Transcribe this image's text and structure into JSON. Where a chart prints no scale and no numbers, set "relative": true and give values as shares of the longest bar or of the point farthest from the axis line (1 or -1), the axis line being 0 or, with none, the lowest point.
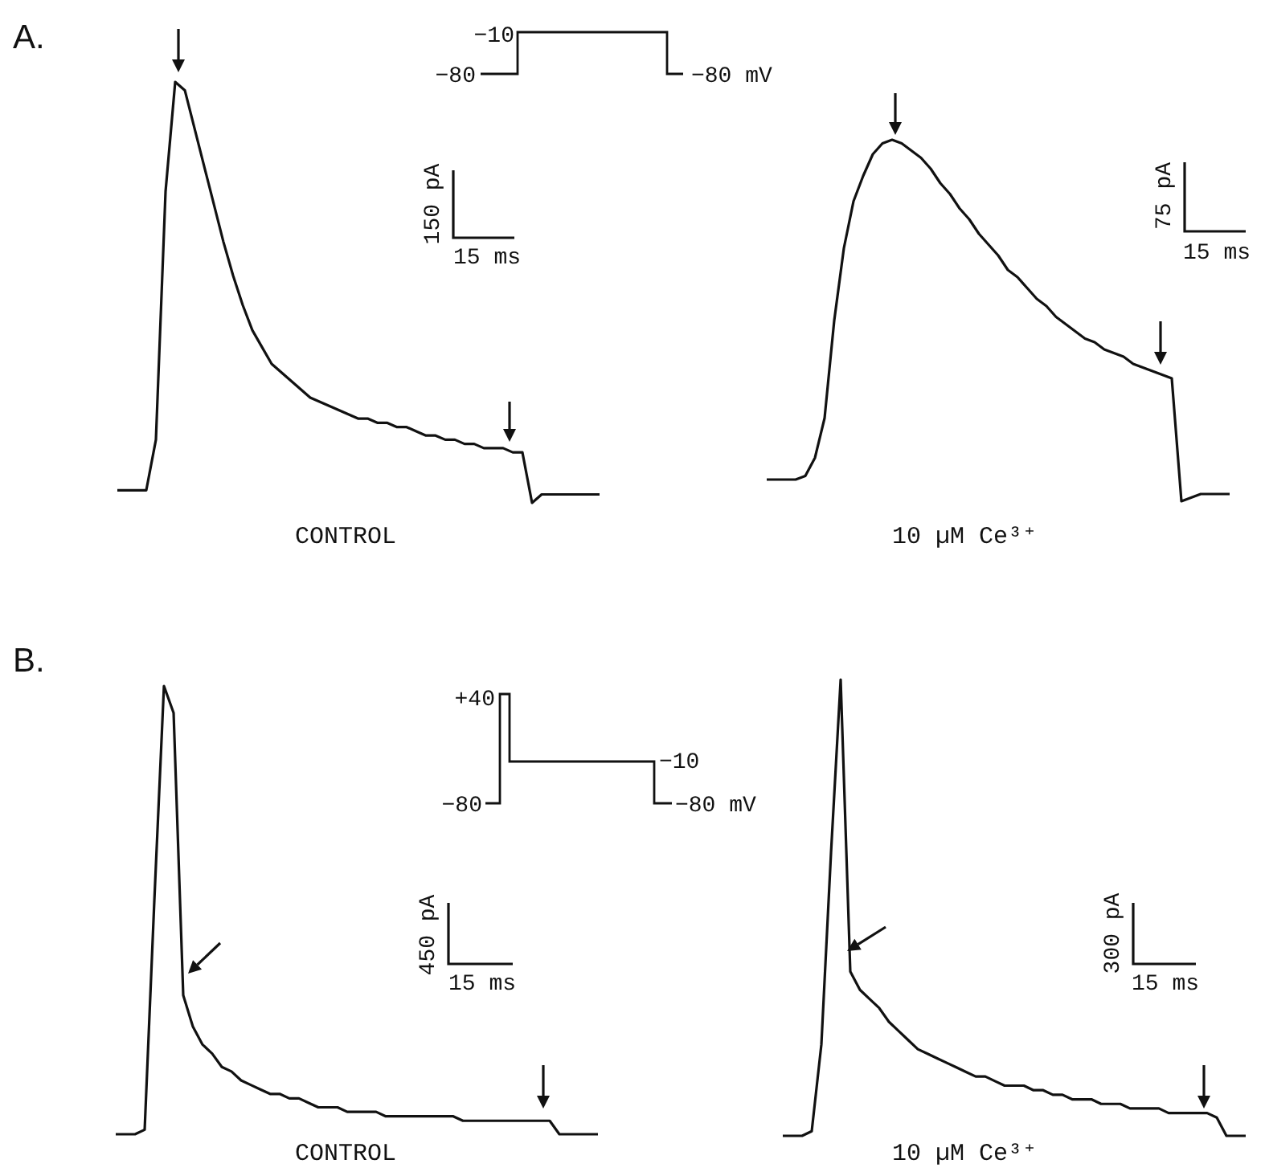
{
  "chart_data": [
    {
      "type": "line",
      "title": "A.",
      "xlabel": "CONTROL",
      "relative": true,
      "color": "#111111",
      "annotations": [
        "−10",
        "−80",
        "−80 mV",
        "150 pA",
        "15 ms"
      ],
      "categories": [
        null,
        null,
        null,
        null,
        null,
        null,
        null,
        null,
        null,
        null,
        null,
        null,
        null,
        null,
        null,
        null,
        null,
        null,
        null,
        null,
        null,
        null,
        null,
        null,
        null,
        null,
        null,
        null,
        null,
        null,
        null,
        null,
        null,
        null,
        null,
        null,
        null,
        null,
        null,
        null,
        null,
        null,
        null,
        null,
        null,
        null,
        null,
        null,
        null,
        null,
        null
      ],
      "values": [
        0.03,
        0.03,
        0.03,
        0.03,
        0.15,
        0.74,
        1,
        0.98,
        0.89,
        0.8,
        0.71,
        0.62,
        0.54,
        0.47,
        0.41,
        0.37,
        0.33,
        0.31,
        0.29,
        0.27,
        0.25,
        0.24,
        0.23,
        0.22,
        0.21,
        0.2,
        0.2,
        0.19,
        0.19,
        0.18,
        0.18,
        0.17,
        0.16,
        0.16,
        0.15,
        0.15,
        0.14,
        0.14,
        0.13,
        0.13,
        0.13,
        0.12,
        0.12,
        0,
        0.02,
        0.02,
        0.02,
        0.02,
        0.02,
        0.02,
        0.02
      ]
    },
    {
      "type": "line",
      "xlabel": "10 µM Ce³⁺",
      "relative": true,
      "color": "#111111",
      "annotations": [
        "75 pA",
        "15 ms"
      ],
      "categories": [
        null,
        null,
        null,
        null,
        null,
        null,
        null,
        null,
        null,
        null,
        null,
        null,
        null,
        null,
        null,
        null,
        null,
        null,
        null,
        null,
        null,
        null,
        null,
        null,
        null,
        null,
        null,
        null,
        null,
        null,
        null,
        null,
        null,
        null,
        null,
        null,
        null,
        null,
        null,
        null,
        null,
        null,
        null,
        null,
        null,
        null,
        null,
        null,
        null
      ],
      "values": [
        0.06,
        0.06,
        0.06,
        0.06,
        0.07,
        0.12,
        0.23,
        0.5,
        0.7,
        0.83,
        0.9,
        0.96,
        0.99,
        1,
        0.99,
        0.97,
        0.95,
        0.92,
        0.88,
        0.85,
        0.81,
        0.78,
        0.74,
        0.71,
        0.68,
        0.64,
        0.62,
        0.59,
        0.56,
        0.54,
        0.51,
        0.49,
        0.47,
        0.45,
        0.44,
        0.42,
        0.41,
        0.4,
        0.38,
        0.37,
        0.36,
        0.35,
        0.34,
        0,
        0.01,
        0.02,
        0.02,
        0.02,
        0.02
      ]
    },
    {
      "type": "line",
      "title": "B.",
      "xlabel": "CONTROL",
      "relative": true,
      "color": "#111111",
      "annotations": [
        "+40",
        "−80",
        "−10",
        "−80 mV",
        "450 pA",
        "15 ms"
      ],
      "categories": [
        null,
        null,
        null,
        null,
        null,
        null,
        null,
        null,
        null,
        null,
        null,
        null,
        null,
        null,
        null,
        null,
        null,
        null,
        null,
        null,
        null,
        null,
        null,
        null,
        null,
        null,
        null,
        null,
        null,
        null,
        null,
        null,
        null,
        null,
        null,
        null,
        null,
        null,
        null,
        null,
        null,
        null,
        null,
        null,
        null,
        null,
        null,
        null,
        null,
        null,
        null
      ],
      "values": [
        0,
        0,
        0,
        0.01,
        0.52,
        1,
        0.94,
        0.31,
        0.24,
        0.2,
        0.18,
        0.15,
        0.14,
        0.12,
        0.11,
        0.1,
        0.09,
        0.09,
        0.08,
        0.08,
        0.07,
        0.06,
        0.06,
        0.06,
        0.05,
        0.05,
        0.05,
        0.05,
        0.04,
        0.04,
        0.04,
        0.04,
        0.04,
        0.04,
        0.04,
        0.04,
        0.03,
        0.03,
        0.03,
        0.03,
        0.03,
        0.03,
        0.03,
        0.03,
        0.03,
        0.03,
        0,
        0,
        0,
        0,
        0
      ]
    },
    {
      "type": "line",
      "xlabel": "10 µM Ce³⁺",
      "relative": true,
      "color": "#111111",
      "annotations": [
        "300 pA",
        "15 ms"
      ],
      "categories": [
        null,
        null,
        null,
        null,
        null,
        null,
        null,
        null,
        null,
        null,
        null,
        null,
        null,
        null,
        null,
        null,
        null,
        null,
        null,
        null,
        null,
        null,
        null,
        null,
        null,
        null,
        null,
        null,
        null,
        null,
        null,
        null,
        null,
        null,
        null,
        null,
        null,
        null,
        null,
        null,
        null,
        null,
        null,
        null,
        null,
        null,
        null,
        null,
        null
      ],
      "values": [
        0,
        0,
        0,
        0.01,
        0.2,
        0.62,
        1,
        0.36,
        0.32,
        0.3,
        0.28,
        0.25,
        0.23,
        0.21,
        0.19,
        0.18,
        0.17,
        0.16,
        0.15,
        0.14,
        0.13,
        0.13,
        0.12,
        0.11,
        0.11,
        0.11,
        0.1,
        0.1,
        0.09,
        0.09,
        0.08,
        0.08,
        0.08,
        0.07,
        0.07,
        0.07,
        0.06,
        0.06,
        0.06,
        0.06,
        0.05,
        0.05,
        0.05,
        0.05,
        0.05,
        0.04,
        0,
        0,
        0
      ]
    }
  ]
}
